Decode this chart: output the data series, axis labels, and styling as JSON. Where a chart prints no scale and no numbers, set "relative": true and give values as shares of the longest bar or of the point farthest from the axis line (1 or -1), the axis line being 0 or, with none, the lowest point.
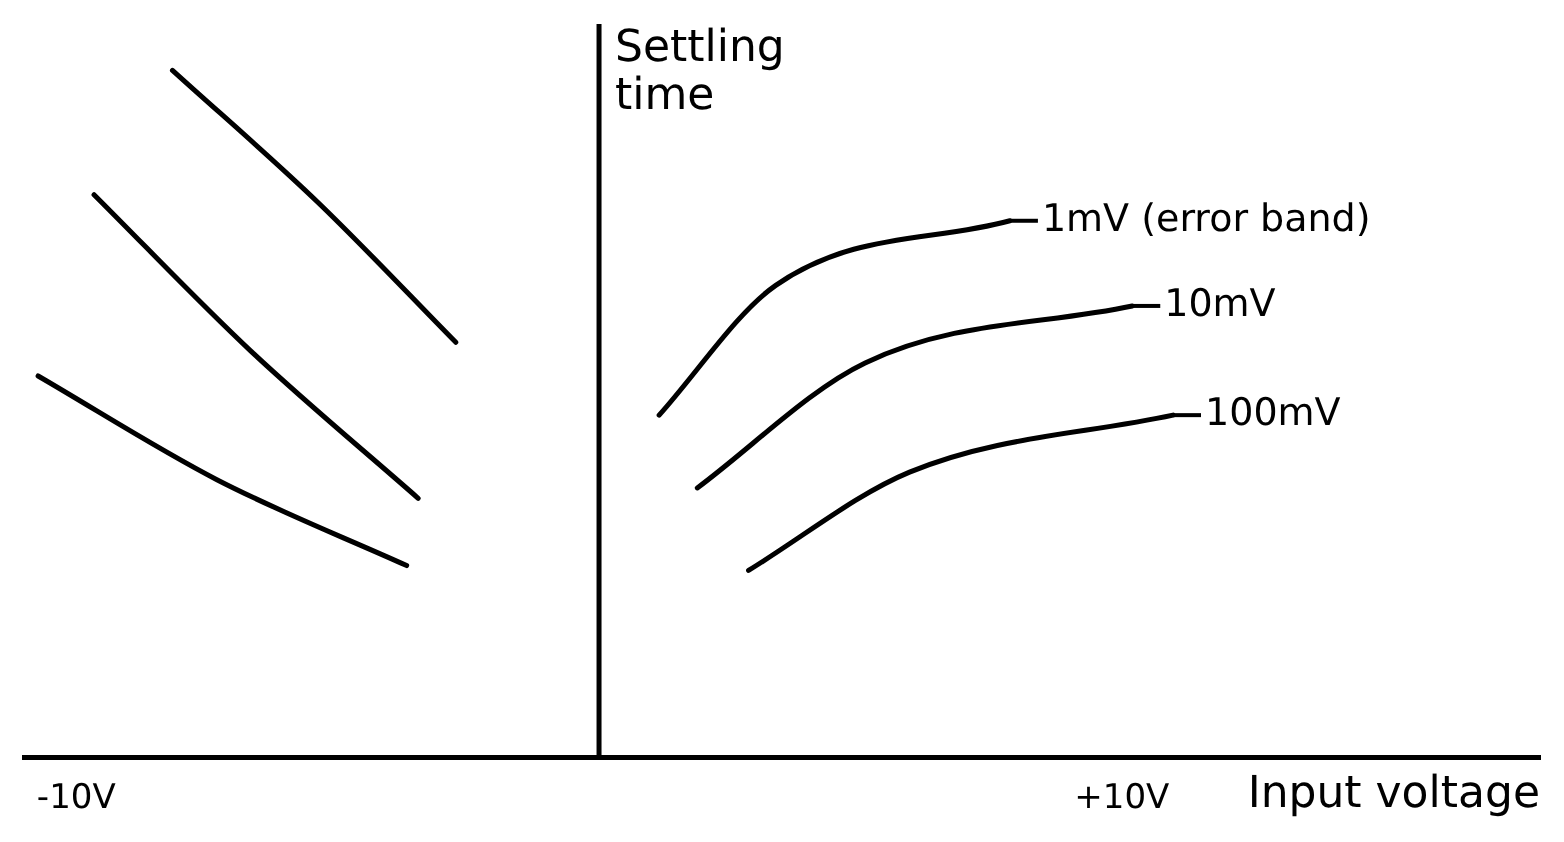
{
  "chart_data": {
    "type": "line",
    "relative": true,
    "xlabel": "Input voltage",
    "ylabel": "Settling time",
    "xlim": [
      -11,
      18
    ],
    "xticks": [
      {
        "value": -10,
        "label": "-10V"
      },
      {
        "value": 10,
        "label": "+10V"
      }
    ],
    "series": [
      {
        "color": "#000000",
        "x": [
          -8.16,
          -5.38,
          -2.74
        ],
        "values": [
          1,
          0.808,
          0.604
        ]
      },
      {
        "color": "#000000",
        "x": [
          -9.66,
          -6.67,
          -3.46
        ],
        "values": [
          0.819,
          0.592,
          0.377
        ]
      },
      {
        "color": "#000000",
        "x": [
          -10.73,
          -7.31,
          -3.68
        ],
        "values": [
          0.555,
          0.404,
          0.279
        ]
      },
      {
        "name": "1mV (error band)",
        "color": "#000000",
        "x": [
          1.15,
          3.38,
          7.86
        ],
        "values": [
          0.498,
          0.687,
          0.781
        ]
      },
      {
        "name": "10mV",
        "color": "#000000",
        "x": [
          1.88,
          5.09,
          10.2
        ],
        "values": [
          0.392,
          0.574,
          0.657
        ]
      },
      {
        "name": "100mV",
        "color": "#000000",
        "x": [
          2.86,
          5.94,
          10.98
        ],
        "values": [
          0.272,
          0.415,
          0.498
        ]
      }
    ],
    "legend": "right",
    "grid": false
  }
}
